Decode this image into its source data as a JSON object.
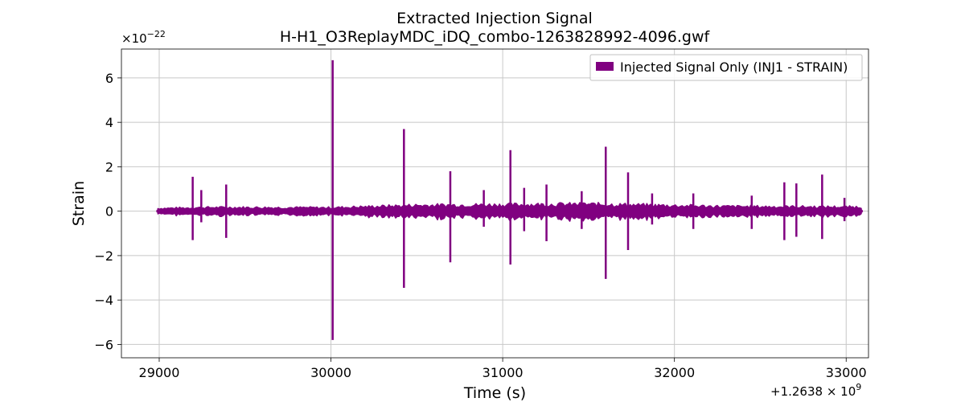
{
  "chart_data": {
    "type": "line",
    "title": "Extracted Injection Signal",
    "subtitle": "H-H1_O3ReplayMDC_iDQ_combo-1263828992-4096.gwf",
    "xlabel": "Time (s)",
    "ylabel": "Strain",
    "x_offset_label": "+1.2638 × 10",
    "x_offset_exponent": "9",
    "y_multiplier_label": "×10",
    "y_multiplier_exponent": "−22",
    "x_ticks": [
      29000,
      30000,
      31000,
      32000,
      33000
    ],
    "x_tick_labels": [
      "29000",
      "30000",
      "31000",
      "32000",
      "33000"
    ],
    "y_ticks": [
      -6,
      -4,
      -2,
      0,
      2,
      4,
      6
    ],
    "y_tick_labels": [
      "−6",
      "−4",
      "−2",
      "0",
      "2",
      "4",
      "6"
    ],
    "xlim": [
      28780,
      33130
    ],
    "ylim": [
      -6.6,
      7.3
    ],
    "grid": true,
    "legend_position": "top-right",
    "series": [
      {
        "name": "Injected Signal Only (INJ1 - STRAIN)",
        "color": "#800080",
        "x_range": [
          28992,
          33088
        ],
        "noise_band": [
          [
            28992,
            0.12
          ],
          [
            29300,
            0.16
          ],
          [
            30000,
            0.15
          ],
          [
            30500,
            0.25
          ],
          [
            31500,
            0.3
          ],
          [
            32300,
            0.2
          ],
          [
            33088,
            0.18
          ]
        ],
        "spikes": [
          {
            "x": 29195,
            "max": 1.55,
            "min": -1.3
          },
          {
            "x": 29245,
            "max": 0.95,
            "min": -0.5
          },
          {
            "x": 29390,
            "max": 1.2,
            "min": -1.2
          },
          {
            "x": 30010,
            "max": 6.8,
            "min": -5.8
          },
          {
            "x": 30425,
            "max": 3.7,
            "min": -3.45
          },
          {
            "x": 30695,
            "max": 1.8,
            "min": -2.3
          },
          {
            "x": 30890,
            "max": 0.95,
            "min": -0.7
          },
          {
            "x": 31045,
            "max": 2.75,
            "min": -2.4
          },
          {
            "x": 31125,
            "max": 1.05,
            "min": -0.9
          },
          {
            "x": 31255,
            "max": 1.2,
            "min": -1.35
          },
          {
            "x": 31460,
            "max": 0.9,
            "min": -0.8
          },
          {
            "x": 31600,
            "max": 2.9,
            "min": -3.05
          },
          {
            "x": 31730,
            "max": 1.75,
            "min": -1.75
          },
          {
            "x": 31870,
            "max": 0.8,
            "min": -0.6
          },
          {
            "x": 32110,
            "max": 0.8,
            "min": -0.8
          },
          {
            "x": 32450,
            "max": 0.7,
            "min": -0.8
          },
          {
            "x": 32640,
            "max": 1.3,
            "min": -1.3
          },
          {
            "x": 32710,
            "max": 1.25,
            "min": -1.15
          },
          {
            "x": 32860,
            "max": 1.65,
            "min": -1.25
          },
          {
            "x": 32990,
            "max": 0.6,
            "min": -0.45
          }
        ]
      }
    ]
  }
}
